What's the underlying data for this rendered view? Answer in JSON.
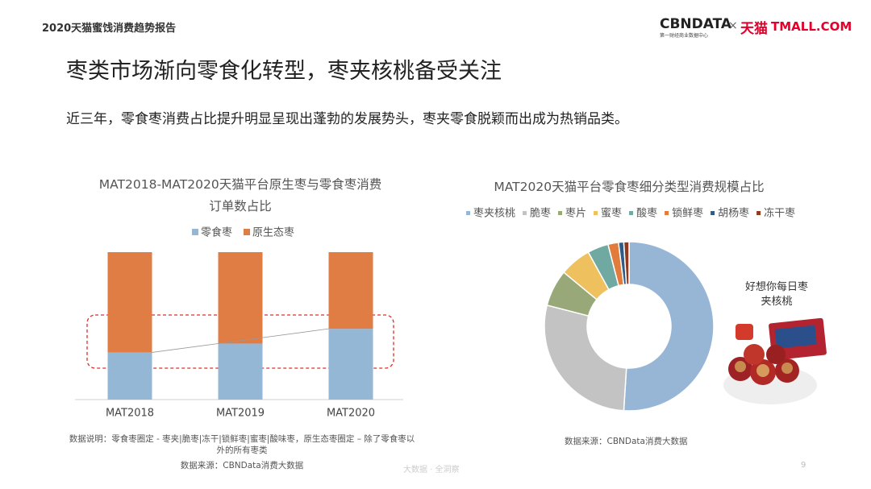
{
  "header": {
    "report": "2020天猫蜜饯消费趋势报告",
    "logo_cbn": "CBNDATA",
    "logo_cbn_sub": "第一财经商业数据中心",
    "logo_x": "×",
    "logo_tmall": "天猫",
    "logo_tmall_en": "TMALL.COM"
  },
  "title": "枣类市场渐向零食化转型，枣夹核桃备受关注",
  "subtitle": "近三年，零食枣消费占比提升明显呈现出蓬勃的发展势头，枣夹零食脱颖而出成为热销品类。",
  "chart_data": [
    {
      "type": "stacked-bar",
      "title": "MAT2018-MAT2020天猫平台原生枣与零食枣消费订单数占比",
      "categories": [
        "MAT2018",
        "MAT2019",
        "MAT2020"
      ],
      "ylim": [
        0,
        100
      ],
      "series": [
        {
          "name": "零食枣",
          "color": "#94b7d6",
          "values": [
            32,
            38,
            48
          ]
        },
        {
          "name": "原生态枣",
          "color": "#e07d45",
          "values": [
            68,
            62,
            52
          ]
        }
      ],
      "note": "数据说明：零食枣圈定 - 枣夹|脆枣|冻干|锁鲜枣|蜜枣|酸味枣，原生态枣圈定 – 除了零食枣以外的所有枣类",
      "source": "数据来源：CBNData消费大数据"
    },
    {
      "type": "donut",
      "title": "MAT2020天猫平台零食枣细分类型消费规模占比",
      "categories": [
        "枣夹核桃",
        "脆枣",
        "枣片",
        "蜜枣",
        "酸枣",
        "锁鲜枣",
        "胡杨枣",
        "冻干枣"
      ],
      "values": [
        51,
        28,
        7,
        6,
        4,
        2,
        1,
        1
      ],
      "colors": [
        "#97b6d6",
        "#c3c3c3",
        "#98a878",
        "#eec15e",
        "#6fa9a1",
        "#e27c3c",
        "#2f5b88",
        "#8d3b1e"
      ],
      "annotation": "好想你每日枣夹核桃",
      "source": "数据来源：CBNData消费大数据"
    }
  ],
  "footer": {
    "tagline": "大数据 · 全洞察",
    "page": "9"
  }
}
